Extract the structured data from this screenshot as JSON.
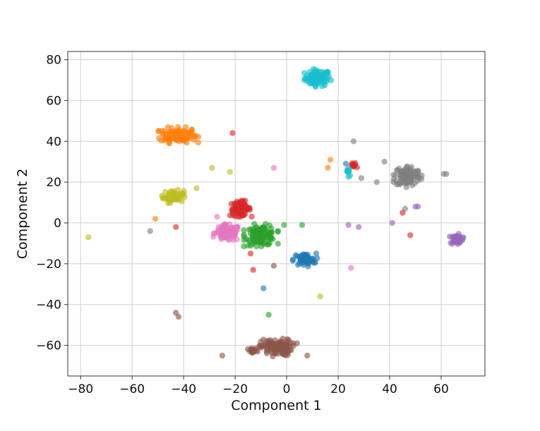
{
  "chart_data": {
    "type": "scatter",
    "title": "",
    "xlabel": "Component 1",
    "ylabel": "Component 2",
    "xlim": [
      -85,
      77
    ],
    "ylim": [
      -75,
      84
    ],
    "xticks": [
      -80,
      -60,
      -40,
      -20,
      0,
      20,
      40,
      60
    ],
    "yticks": [
      -60,
      -40,
      -20,
      0,
      20,
      40,
      60,
      80
    ],
    "xtick_labels": [
      "−80",
      "−60",
      "−40",
      "−20",
      "0",
      "20",
      "40",
      "60"
    ],
    "ytick_labels": [
      "−60",
      "−40",
      "−20",
      "0",
      "20",
      "40",
      "60",
      "80"
    ],
    "grid": true,
    "legend": "none",
    "clusters": [
      {
        "color": "#17becf",
        "center": [
          12,
          71
        ],
        "spread": [
          2.5,
          2.0
        ],
        "count": 90
      },
      {
        "color": "#ff7f0e",
        "center": [
          -42,
          43
        ],
        "spread": [
          3.5,
          1.8
        ],
        "count": 120
      },
      {
        "color": "#bcbd22",
        "center": [
          -44,
          13
        ],
        "spread": [
          2.0,
          1.5
        ],
        "count": 60
      },
      {
        "color": "#d62728",
        "center": [
          -18,
          7
        ],
        "spread": [
          2.0,
          1.8
        ],
        "count": 70
      },
      {
        "color": "#e377c2",
        "center": [
          -23,
          -5
        ],
        "spread": [
          2.5,
          2.0
        ],
        "count": 100
      },
      {
        "color": "#2ca02c",
        "center": [
          -10,
          -6
        ],
        "spread": [
          3.0,
          2.5
        ],
        "count": 110
      },
      {
        "color": "#1f77b4",
        "center": [
          7,
          -18
        ],
        "spread": [
          2.2,
          1.5
        ],
        "count": 50
      },
      {
        "color": "#7f7f7f",
        "center": [
          47,
          23
        ],
        "spread": [
          2.5,
          2.5
        ],
        "count": 110
      },
      {
        "color": "#9467bd",
        "center": [
          66,
          -8
        ],
        "spread": [
          1.2,
          1.2
        ],
        "count": 50
      },
      {
        "color": "#8c564b",
        "center": [
          -4,
          -61
        ],
        "spread": [
          3.0,
          2.0
        ],
        "count": 110
      },
      {
        "color": "#8c564b",
        "center": [
          -13,
          -63
        ],
        "spread": [
          1.0,
          0.8
        ],
        "count": 15
      },
      {
        "color": "#d62728",
        "center": [
          26,
          28
        ],
        "spread": [
          0.6,
          0.8
        ],
        "count": 10
      },
      {
        "color": "#17becf",
        "center": [
          24,
          25
        ],
        "spread": [
          0.6,
          1.5
        ],
        "count": 10
      }
    ],
    "points": [
      {
        "x": -77,
        "y": -7,
        "color": "#bcbd22"
      },
      {
        "x": -53,
        "y": -4,
        "color": "#7f7f7f"
      },
      {
        "x": -51,
        "y": 2,
        "color": "#ff7f0e"
      },
      {
        "x": -43,
        "y": -2,
        "color": "#d62728"
      },
      {
        "x": -43,
        "y": -44,
        "color": "#8c564b"
      },
      {
        "x": -42,
        "y": -46,
        "color": "#8c564b"
      },
      {
        "x": -35,
        "y": 17,
        "color": "#bcbd22"
      },
      {
        "x": -29,
        "y": 27,
        "color": "#bcbd22"
      },
      {
        "x": -27,
        "y": 3,
        "color": "#e377c2"
      },
      {
        "x": -25,
        "y": -65,
        "color": "#8c564b"
      },
      {
        "x": -22,
        "y": 25,
        "color": "#bcbd22"
      },
      {
        "x": -21,
        "y": 44,
        "color": "#d62728"
      },
      {
        "x": -14,
        "y": -15,
        "color": "#d62728"
      },
      {
        "x": -13,
        "y": -23,
        "color": "#d62728"
      },
      {
        "x": -9,
        "y": -32,
        "color": "#1f77b4"
      },
      {
        "x": -7,
        "y": -45,
        "color": "#2ca02c"
      },
      {
        "x": -5,
        "y": 27,
        "color": "#e377c2"
      },
      {
        "x": -5,
        "y": -21,
        "color": "#8c564b"
      },
      {
        "x": -1,
        "y": -1,
        "color": "#2ca02c"
      },
      {
        "x": 4,
        "y": -59,
        "color": "#8c564b"
      },
      {
        "x": 6,
        "y": -1,
        "color": "#2ca02c"
      },
      {
        "x": 8,
        "y": -65,
        "color": "#8c564b"
      },
      {
        "x": 13,
        "y": -36,
        "color": "#bcbd22"
      },
      {
        "x": 16,
        "y": 27,
        "color": "#ff7f0e"
      },
      {
        "x": 17,
        "y": 31,
        "color": "#ff7f0e"
      },
      {
        "x": 23,
        "y": 29,
        "color": "#1f77b4"
      },
      {
        "x": 24,
        "y": -1,
        "color": "#9467bd"
      },
      {
        "x": 25,
        "y": -22,
        "color": "#e377c2"
      },
      {
        "x": 26,
        "y": 40,
        "color": "#7f7f7f"
      },
      {
        "x": 28,
        "y": -2,
        "color": "#9467bd"
      },
      {
        "x": 29,
        "y": 22,
        "color": "#7f7f7f"
      },
      {
        "x": 35,
        "y": 20,
        "color": "#7f7f7f"
      },
      {
        "x": 38,
        "y": 30,
        "color": "#7f7f7f"
      },
      {
        "x": 41,
        "y": 0,
        "color": "#9467bd"
      },
      {
        "x": 45,
        "y": 5,
        "color": "#d62728"
      },
      {
        "x": 46,
        "y": 7,
        "color": "#7f7f7f"
      },
      {
        "x": 48,
        "y": -6,
        "color": "#d62728"
      },
      {
        "x": 50,
        "y": 8,
        "color": "#9467bd"
      },
      {
        "x": 51,
        "y": 8,
        "color": "#9467bd"
      },
      {
        "x": 61,
        "y": 24,
        "color": "#7f7f7f"
      },
      {
        "x": 62,
        "y": 24,
        "color": "#7f7f7f"
      }
    ]
  }
}
